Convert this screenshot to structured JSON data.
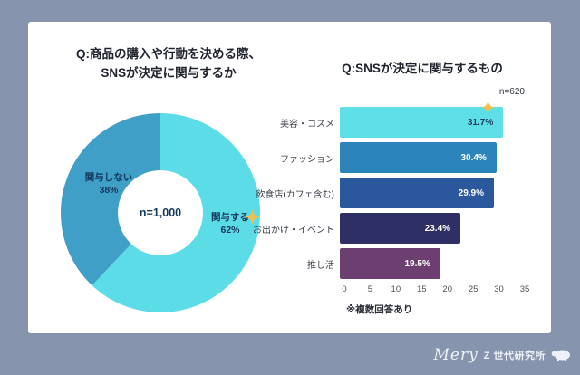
{
  "page": {
    "background_color": "#8695ad",
    "card_color": "#ffffff",
    "accent_star_color": "#f3c04d"
  },
  "footer": {
    "brand_script": "Mery",
    "brand_rest": "Z 世代研究所",
    "icon": "sheep-icon"
  },
  "chart_data": [
    {
      "type": "pie",
      "donut": true,
      "title": "Q:商品の購入や行動を決める際、SNSが決定に関与するか",
      "title_lines": [
        "Q:商品の購入や行動を決める際、",
        "SNSが決定に関与するか"
      ],
      "center_label": "n=1,000",
      "start_angle_deg": -90,
      "direction": "clockwise",
      "slices": [
        {
          "label": "関与する",
          "pct_label": "62%",
          "value": 62,
          "color": "#5bdce6",
          "has_star": true
        },
        {
          "label": "関与しない",
          "pct_label": "38%",
          "value": 38,
          "color": "#3f9fc7",
          "has_star": false
        }
      ]
    },
    {
      "type": "bar",
      "orientation": "horizontal",
      "title": "Q:SNSが決定に関与するもの",
      "sample_label": "n=620",
      "categories": [
        "美容・コスメ",
        "ファッション",
        "飲食店(カフェ含む)",
        "お出かけ・イベント",
        "推し活"
      ],
      "values": [
        31.7,
        30.4,
        29.9,
        23.4,
        19.5
      ],
      "value_labels": [
        "31.7%",
        "30.4%",
        "29.9%",
        "23.4%",
        "19.5%"
      ],
      "bar_colors": [
        "#5edee6",
        "#2c85ba",
        "#2b579c",
        "#2e3065",
        "#6d3f70"
      ],
      "value_label_colors": [
        "#1d3b5e",
        "#ffffff",
        "#ffffff",
        "#ffffff",
        "#ffffff"
      ],
      "xlim": [
        0,
        35
      ],
      "xticks": [
        0,
        5,
        10,
        15,
        20,
        25,
        30,
        35
      ],
      "grid": false,
      "legend": false,
      "note": "※複数回答あり",
      "star_on_first_bar": true
    }
  ]
}
